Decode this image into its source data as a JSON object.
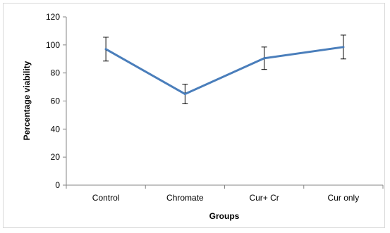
{
  "chart_data": {
    "type": "line",
    "title": "",
    "xlabel": "Groups",
    "ylabel": "Percentage viability",
    "categories": [
      "Control",
      "Chromate",
      "Cur+ Cr",
      "Cur only"
    ],
    "series": [
      {
        "values": [
          97,
          65,
          90.5,
          98.5
        ],
        "error": [
          8.5,
          7,
          8,
          8.5
        ],
        "color": "#4a7ebb"
      }
    ],
    "ylim": [
      0,
      120
    ],
    "yticks": [
      "0",
      "20",
      "40",
      "60",
      "80",
      "100",
      "120"
    ],
    "legend": "none",
    "grid": false
  }
}
